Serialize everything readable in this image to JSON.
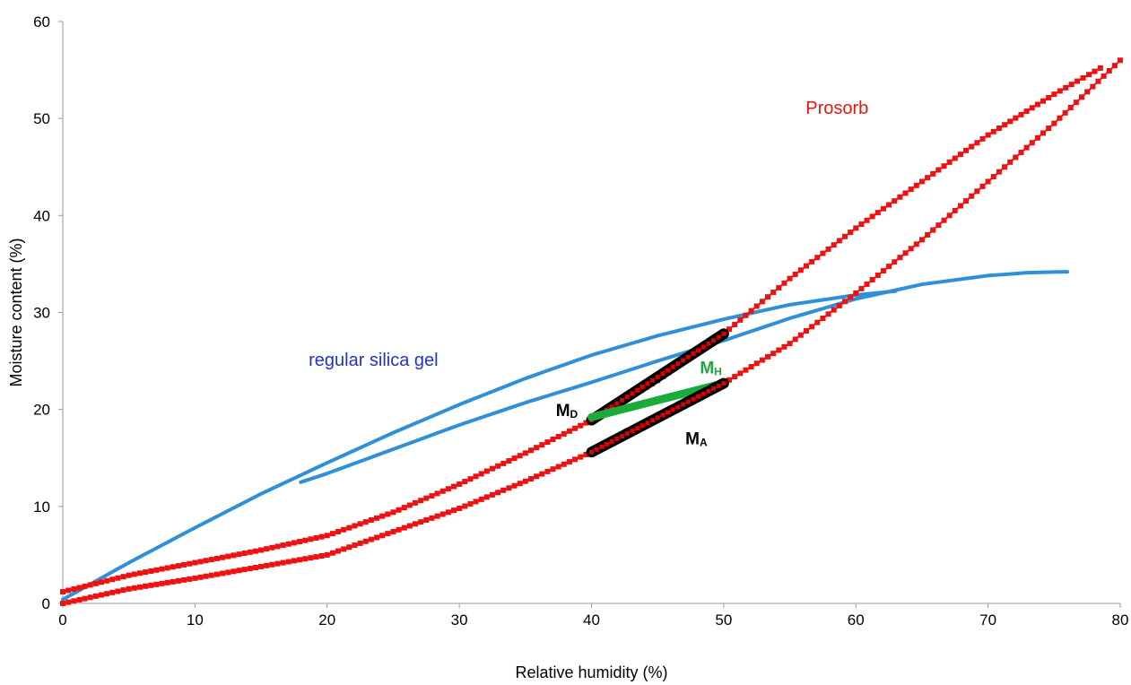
{
  "chart_data": {
    "type": "scatter",
    "xlabel": "Relative humidity (%)",
    "ylabel": "Moisture content (%)",
    "xlim": [
      0,
      80
    ],
    "ylim": [
      0,
      60
    ],
    "x_ticks": [
      0,
      10,
      20,
      30,
      40,
      50,
      60,
      70,
      80
    ],
    "y_ticks": [
      0,
      10,
      20,
      30,
      40,
      50,
      60
    ],
    "x_tick_labels": [
      "0",
      "10",
      "20",
      "30",
      "40",
      "50",
      "60",
      "70",
      "80"
    ],
    "y_tick_labels": [
      "0",
      "10",
      "20",
      "30",
      "40",
      "50",
      "60"
    ],
    "grid": false,
    "series": [
      {
        "name": "regular silica gel",
        "color": "#2f8fd8",
        "style": "line",
        "branches": [
          {
            "x": [
              0,
              5,
              10,
              15,
              20,
              25,
              30,
              35,
              40,
              45,
              50,
              55,
              60,
              63
            ],
            "y": [
              0.4,
              4.2,
              7.8,
              11.3,
              14.5,
              17.6,
              20.5,
              23.2,
              25.6,
              27.6,
              29.3,
              30.8,
              31.8,
              32.2
            ]
          },
          {
            "x": [
              18,
              20,
              25,
              30,
              35,
              40,
              45,
              50,
              55,
              60,
              65,
              70,
              73,
              76
            ],
            "y": [
              12.5,
              13.4,
              15.9,
              18.4,
              20.7,
              22.8,
              25.0,
              27.1,
              29.4,
              31.4,
              32.9,
              33.8,
              34.1,
              34.2
            ]
          }
        ]
      },
      {
        "name": "Prosorb",
        "color": "#ee1111",
        "style": "markers",
        "branches": [
          {
            "x": [
              0,
              5,
              10,
              15,
              20,
              25,
              30,
              35,
              40,
              45,
              50,
              55,
              60,
              65,
              70,
              75,
              78.5
            ],
            "y": [
              1.2,
              2.9,
              4.2,
              5.5,
              7.0,
              9.4,
              12.3,
              15.5,
              18.9,
              23.0,
              27.8,
              33.5,
              38.7,
              43.5,
              48.3,
              52.5,
              55.2
            ]
          },
          {
            "x": [
              0,
              5,
              10,
              15,
              20,
              25,
              30,
              35,
              40,
              45,
              50,
              55,
              60,
              65,
              70,
              75,
              80
            ],
            "y": [
              0,
              1.5,
              2.6,
              3.8,
              5.0,
              7.4,
              9.8,
              12.6,
              15.6,
              19.0,
              22.7,
              26.8,
              32.0,
              37.5,
              43.5,
              49.5,
              56.0
            ]
          }
        ]
      }
    ],
    "annotations": [
      {
        "id": "MD",
        "text": "M",
        "sub": "D",
        "color": "#000000",
        "x": 37.3,
        "y": 19.3,
        "segment": {
          "x": [
            40,
            50
          ],
          "y": [
            18.9,
            27.8
          ]
        }
      },
      {
        "id": "MH",
        "text": "M",
        "sub": "H",
        "color": "#1aab3a",
        "x": 48.2,
        "y": 23.7,
        "segment": {
          "x": [
            40,
            50
          ],
          "y": [
            19.2,
            22.7
          ]
        }
      },
      {
        "id": "MA",
        "text": "M",
        "sub": "A",
        "color": "#000000",
        "x": 47.1,
        "y": 16.4,
        "segment": {
          "x": [
            40,
            50
          ],
          "y": [
            15.6,
            22.7
          ]
        }
      },
      {
        "id": "silica-label",
        "text": "regular silica gel",
        "color": "#2233cc",
        "x": 18.6,
        "y": 24.5
      },
      {
        "id": "prosorb-label",
        "text": "Prosorb",
        "color": "#ee1111",
        "x": 56.2,
        "y": 50.5
      }
    ]
  }
}
